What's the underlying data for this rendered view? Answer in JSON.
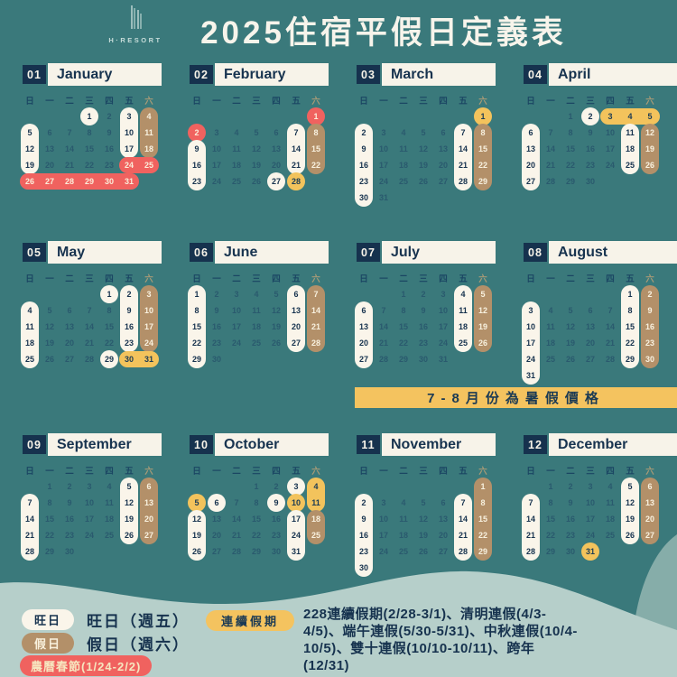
{
  "header": {
    "logo_text": "H·RESORT",
    "title": "2025住宿平假日定義表"
  },
  "weekdays": [
    "日",
    "一",
    "二",
    "三",
    "四",
    "五",
    "六"
  ],
  "months": [
    {
      "num": "01",
      "name": "January",
      "first_dow": 3,
      "days": 31,
      "marks": {
        "1": "white single",
        "3": "white top",
        "10": "white mid",
        "17": "white bottom",
        "4": "tan top",
        "11": "tan mid",
        "18": "tan bottom",
        "5": "white top",
        "12": "white mid",
        "19": "white bottom",
        "24": "red left",
        "25": "red right",
        "26": "red left",
        "27": "red hmid",
        "28": "red hmid",
        "29": "red hmid",
        "30": "red hmid",
        "31": "red right"
      }
    },
    {
      "num": "02",
      "name": "February",
      "first_dow": 6,
      "days": 28,
      "marks": {
        "1": "red single",
        "2": "red single",
        "7": "white top",
        "14": "white mid",
        "21": "white bottom",
        "8": "tan top",
        "15": "tan mid",
        "22": "tan bottom",
        "9": "white top",
        "16": "white mid",
        "23": "white bottom",
        "27": "white single",
        "28": "gold single"
      }
    },
    {
      "num": "03",
      "name": "March",
      "first_dow": 6,
      "days": 31,
      "marks": {
        "1": "gold single",
        "2": "white top",
        "9": "white mid",
        "16": "white mid",
        "23": "white mid",
        "30": "white bottom",
        "7": "white top",
        "14": "white mid",
        "21": "white mid",
        "28": "white bottom",
        "8": "tan top",
        "15": "tan mid",
        "22": "tan mid",
        "29": "tan bottom"
      }
    },
    {
      "num": "04",
      "name": "April",
      "first_dow": 2,
      "days": 30,
      "marks": {
        "2": "white single",
        "3": "gold left",
        "4": "gold hmid",
        "5": "gold right",
        "6": "white top",
        "13": "white mid",
        "20": "white mid",
        "27": "white bottom",
        "11": "white top",
        "18": "white mid",
        "25": "white bottom",
        "12": "tan top",
        "19": "tan mid",
        "26": "tan bottom"
      }
    },
    {
      "num": "05",
      "name": "May",
      "first_dow": 4,
      "days": 31,
      "marks": {
        "1": "white single",
        "29": "white single",
        "2": "white top",
        "9": "white mid",
        "16": "white mid",
        "23": "white bottom",
        "3": "tan top",
        "10": "tan mid",
        "17": "tan mid",
        "24": "tan bottom",
        "4": "white top",
        "11": "white mid",
        "18": "white mid",
        "25": "white bottom",
        "30": "gold left",
        "31": "gold right"
      }
    },
    {
      "num": "06",
      "name": "June",
      "first_dow": 0,
      "days": 30,
      "marks": {
        "1": "white top",
        "8": "white mid",
        "15": "white mid",
        "22": "white mid",
        "29": "white bottom",
        "6": "white top",
        "13": "white mid",
        "20": "white mid",
        "27": "white bottom",
        "7": "tan top",
        "14": "tan mid",
        "21": "tan mid",
        "28": "tan bottom"
      }
    },
    {
      "num": "07",
      "name": "July",
      "first_dow": 2,
      "days": 31,
      "marks": {
        "4": "white top",
        "11": "white mid",
        "18": "white mid",
        "25": "white bottom",
        "5": "tan top",
        "12": "tan mid",
        "19": "tan mid",
        "26": "tan bottom",
        "6": "white top",
        "13": "white mid",
        "20": "white mid",
        "27": "white bottom"
      }
    },
    {
      "num": "08",
      "name": "August",
      "first_dow": 5,
      "days": 31,
      "marks": {
        "1": "white top",
        "8": "white mid",
        "15": "white mid",
        "22": "white mid",
        "29": "white bottom",
        "2": "tan top",
        "9": "tan mid",
        "16": "tan mid",
        "23": "tan mid",
        "30": "tan bottom",
        "3": "white top",
        "10": "white mid",
        "17": "white mid",
        "24": "white mid",
        "31": "white bottom"
      }
    },
    {
      "num": "09",
      "name": "September",
      "first_dow": 1,
      "days": 30,
      "marks": {
        "5": "white top",
        "12": "white mid",
        "19": "white mid",
        "26": "white bottom",
        "6": "tan top",
        "13": "tan mid",
        "20": "tan mid",
        "27": "tan bottom",
        "7": "white top",
        "14": "white mid",
        "21": "white mid",
        "28": "white bottom"
      }
    },
    {
      "num": "10",
      "name": "October",
      "first_dow": 3,
      "days": 31,
      "marks": {
        "3": "white single",
        "4": "gold top",
        "11": "gold bottom",
        "5": "gold single",
        "6": "white single",
        "9": "white single",
        "10": "gold single",
        "12": "white top",
        "19": "white mid",
        "26": "white bottom",
        "17": "white top",
        "24": "white mid",
        "31": "white bottom",
        "18": "tan top",
        "25": "tan bottom"
      }
    },
    {
      "num": "11",
      "name": "November",
      "first_dow": 6,
      "days": 30,
      "marks": {
        "1": "tan top",
        "8": "tan mid",
        "15": "tan mid",
        "22": "tan mid",
        "29": "tan bottom",
        "2": "white top",
        "9": "white mid",
        "16": "white mid",
        "23": "white mid",
        "30": "white bottom",
        "7": "white top",
        "14": "white mid",
        "21": "white mid",
        "28": "white bottom"
      }
    },
    {
      "num": "12",
      "name": "December",
      "first_dow": 1,
      "days": 31,
      "marks": {
        "5": "white top",
        "12": "white mid",
        "19": "white mid",
        "26": "white bottom",
        "6": "tan top",
        "13": "tan mid",
        "20": "tan mid",
        "27": "tan bottom",
        "7": "white top",
        "14": "white mid",
        "21": "white mid",
        "28": "white bottom",
        "31": "gold single"
      }
    }
  ],
  "banner": {
    "text": "7-8月份為暑假價格"
  },
  "legend": {
    "hot_badge": "旺日",
    "hot_label": "旺日（週五）",
    "holiday_badge": "假日",
    "holiday_label": "假日（週六）",
    "cny_badge": "農曆春節(1/24-2/2)",
    "streak_badge": "連續假期",
    "streak_lines": [
      "228連續假期(2/28-3/1)、清明連假(4/3-",
      "4/5)、端午連假(5/30-5/31)、中秋連假(10/4-",
      "10/5)、雙十連假(10/10-10/11)、跨年",
      "(12/31)"
    ]
  },
  "colors": {
    "background_teal": "#3A797B",
    "navy": "#16324E",
    "cream_hot_day": "#FAF5EA",
    "tan_holiday": "#B39069",
    "red_cny": "#F0625F",
    "gold_streak": "#F3C35C",
    "wave_light": "#B6CFCA"
  }
}
